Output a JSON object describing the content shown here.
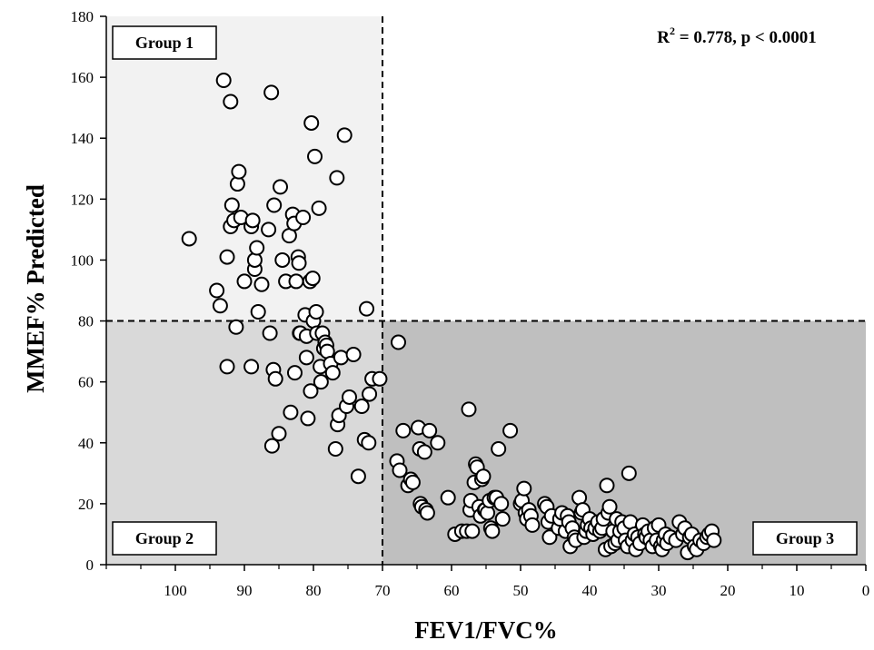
{
  "chart_data": {
    "type": "scatter",
    "xlabel": "FEV1/FVC%",
    "ylabel": "MMEF% Predicted",
    "xlim": [
      110,
      0
    ],
    "ylim": [
      0,
      180
    ],
    "x_reversed": true,
    "x_ticks": [
      100,
      90,
      80,
      70,
      60,
      50,
      40,
      30,
      20,
      10,
      0
    ],
    "y_ticks": [
      0,
      20,
      40,
      60,
      80,
      100,
      120,
      140,
      160,
      180
    ],
    "grid": false,
    "annotation": {
      "text": "R² = 0.778, p < 0.0001",
      "main": "R",
      "sup": "2",
      "rest": " = 0.778, p < 0.0001"
    },
    "cutoffs": {
      "x": 70,
      "y": 80
    },
    "groups": [
      {
        "label": "Group 1",
        "region": "x >= 70, y >= 80",
        "color": "#f2f2f2"
      },
      {
        "label": "Group 2",
        "region": "x >= 70, y < 80",
        "color": "#d9d9d9"
      },
      {
        "label": "Group 3",
        "region": "x < 70, y < 80",
        "color": "#bfbfbf"
      }
    ],
    "points": [
      [
        98,
        107
      ],
      [
        94,
        90
      ],
      [
        93.5,
        85
      ],
      [
        93,
        159
      ],
      [
        92.5,
        101
      ],
      [
        92.5,
        65
      ],
      [
        92,
        111
      ],
      [
        92,
        152
      ],
      [
        91.8,
        118
      ],
      [
        91.5,
        113
      ],
      [
        91.2,
        78
      ],
      [
        91,
        125
      ],
      [
        90.8,
        129
      ],
      [
        90.5,
        114
      ],
      [
        90,
        93
      ],
      [
        89,
        111
      ],
      [
        89,
        65
      ],
      [
        88.8,
        113
      ],
      [
        88.5,
        97
      ],
      [
        88.5,
        100
      ],
      [
        88.2,
        104
      ],
      [
        88,
        83
      ],
      [
        87.5,
        92
      ],
      [
        86.5,
        110
      ],
      [
        86.3,
        76
      ],
      [
        86.1,
        155
      ],
      [
        86,
        39
      ],
      [
        85.8,
        64
      ],
      [
        85.7,
        118
      ],
      [
        85.5,
        61
      ],
      [
        85,
        43
      ],
      [
        84.8,
        124
      ],
      [
        84.5,
        100
      ],
      [
        84,
        93
      ],
      [
        83.5,
        108
      ],
      [
        83.3,
        50
      ],
      [
        83,
        115
      ],
      [
        82.8,
        112
      ],
      [
        82.7,
        63
      ],
      [
        82.5,
        93
      ],
      [
        82.2,
        101
      ],
      [
        82.1,
        99
      ],
      [
        82,
        76
      ],
      [
        81.9,
        76
      ],
      [
        81.5,
        114
      ],
      [
        81.2,
        82
      ],
      [
        81,
        75
      ],
      [
        81,
        68
      ],
      [
        80.8,
        48
      ],
      [
        80.5,
        93
      ],
      [
        80.4,
        57
      ],
      [
        80.3,
        145
      ],
      [
        80.1,
        94
      ],
      [
        80,
        80
      ],
      [
        79.8,
        134
      ],
      [
        79.6,
        83
      ],
      [
        79.5,
        76
      ],
      [
        79.2,
        117
      ],
      [
        79,
        65
      ],
      [
        78.9,
        60
      ],
      [
        78.7,
        76
      ],
      [
        78.5,
        71
      ],
      [
        78.3,
        73
      ],
      [
        78.1,
        72
      ],
      [
        78,
        70
      ],
      [
        77.5,
        66
      ],
      [
        77.2,
        63
      ],
      [
        76.8,
        38
      ],
      [
        76.6,
        127
      ],
      [
        76.5,
        46
      ],
      [
        76.3,
        49
      ],
      [
        76,
        68
      ],
      [
        75.5,
        141
      ],
      [
        75.2,
        52
      ],
      [
        74.8,
        55
      ],
      [
        74.2,
        69
      ],
      [
        73.5,
        29
      ],
      [
        73,
        52
      ],
      [
        72.6,
        41
      ],
      [
        72.3,
        84
      ],
      [
        72,
        40
      ],
      [
        71.9,
        56
      ],
      [
        71.5,
        61
      ],
      [
        70.4,
        61
      ],
      [
        67.7,
        73
      ],
      [
        67.9,
        34
      ],
      [
        67.5,
        31
      ],
      [
        67,
        44
      ],
      [
        66.3,
        26
      ],
      [
        65.9,
        28
      ],
      [
        65.6,
        27
      ],
      [
        64.8,
        45
      ],
      [
        64.6,
        38
      ],
      [
        64.5,
        20
      ],
      [
        64.3,
        19
      ],
      [
        63.9,
        37
      ],
      [
        63.7,
        18
      ],
      [
        63.5,
        17
      ],
      [
        63.2,
        44
      ],
      [
        62,
        40
      ],
      [
        60.5,
        22
      ],
      [
        59.5,
        10
      ],
      [
        58.5,
        11
      ],
      [
        57.8,
        11
      ],
      [
        57.5,
        51
      ],
      [
        57.3,
        18
      ],
      [
        57.2,
        21
      ],
      [
        57,
        11
      ],
      [
        56.7,
        27
      ],
      [
        56.5,
        33
      ],
      [
        56.3,
        32
      ],
      [
        56,
        19
      ],
      [
        55.8,
        16
      ],
      [
        55.6,
        28
      ],
      [
        55.4,
        29
      ],
      [
        55.2,
        18
      ],
      [
        55.1,
        18
      ],
      [
        54.8,
        17
      ],
      [
        54.5,
        21
      ],
      [
        54.3,
        12
      ],
      [
        54.1,
        11
      ],
      [
        53.8,
        22
      ],
      [
        53.5,
        22
      ],
      [
        53.2,
        38
      ],
      [
        52.8,
        20
      ],
      [
        52.6,
        15
      ],
      [
        51.5,
        44
      ],
      [
        50,
        20
      ],
      [
        49.8,
        21
      ],
      [
        49.5,
        25
      ],
      [
        49.3,
        17
      ],
      [
        49.1,
        15
      ],
      [
        48.8,
        18
      ],
      [
        48.5,
        16
      ],
      [
        48.3,
        13
      ],
      [
        46.5,
        20
      ],
      [
        46.2,
        19
      ],
      [
        46,
        14
      ],
      [
        45.8,
        9
      ],
      [
        45.5,
        16
      ],
      [
        44.5,
        12
      ],
      [
        44.3,
        15
      ],
      [
        44,
        17
      ],
      [
        43.5,
        11
      ],
      [
        43.2,
        16
      ],
      [
        43,
        14
      ],
      [
        42.8,
        6
      ],
      [
        42.5,
        12
      ],
      [
        42.2,
        9
      ],
      [
        42,
        8
      ],
      [
        41.5,
        22
      ],
      [
        41.2,
        17
      ],
      [
        41,
        18
      ],
      [
        40.8,
        9
      ],
      [
        40.5,
        11
      ],
      [
        40.3,
        13
      ],
      [
        40,
        15
      ],
      [
        39.8,
        12
      ],
      [
        39.5,
        10
      ],
      [
        39.2,
        12
      ],
      [
        38.8,
        14
      ],
      [
        38.5,
        11
      ],
      [
        38.2,
        12
      ],
      [
        38,
        15
      ],
      [
        37.7,
        5
      ],
      [
        37.5,
        26
      ],
      [
        37.3,
        17
      ],
      [
        37.1,
        19
      ],
      [
        36.9,
        6
      ],
      [
        36.6,
        11
      ],
      [
        36.3,
        7
      ],
      [
        36.1,
        15
      ],
      [
        35.9,
        8
      ],
      [
        35.6,
        11
      ],
      [
        35.3,
        14
      ],
      [
        35,
        12
      ],
      [
        34.8,
        8
      ],
      [
        34.5,
        6
      ],
      [
        34.3,
        30
      ],
      [
        34.1,
        14
      ],
      [
        33.8,
        8
      ],
      [
        33.5,
        10
      ],
      [
        33.3,
        5
      ],
      [
        33,
        9
      ],
      [
        32.7,
        7
      ],
      [
        32.3,
        13
      ],
      [
        32,
        10
      ],
      [
        31.8,
        9
      ],
      [
        31.5,
        11
      ],
      [
        31.2,
        8
      ],
      [
        30.9,
        6
      ],
      [
        30.6,
        12
      ],
      [
        30.3,
        8
      ],
      [
        30,
        13
      ],
      [
        29.7,
        6
      ],
      [
        29.5,
        5
      ],
      [
        29.3,
        8
      ],
      [
        29,
        10
      ],
      [
        28.8,
        7
      ],
      [
        28.3,
        9
      ],
      [
        27.5,
        8
      ],
      [
        27,
        14
      ],
      [
        26.5,
        10
      ],
      [
        26.2,
        12
      ],
      [
        25.8,
        4
      ],
      [
        25.5,
        9
      ],
      [
        25.2,
        10
      ],
      [
        24.8,
        6
      ],
      [
        24.5,
        5
      ],
      [
        24,
        8
      ],
      [
        23.5,
        7
      ],
      [
        23,
        9
      ],
      [
        22.7,
        10
      ],
      [
        22.3,
        11
      ],
      [
        22,
        8
      ]
    ]
  }
}
